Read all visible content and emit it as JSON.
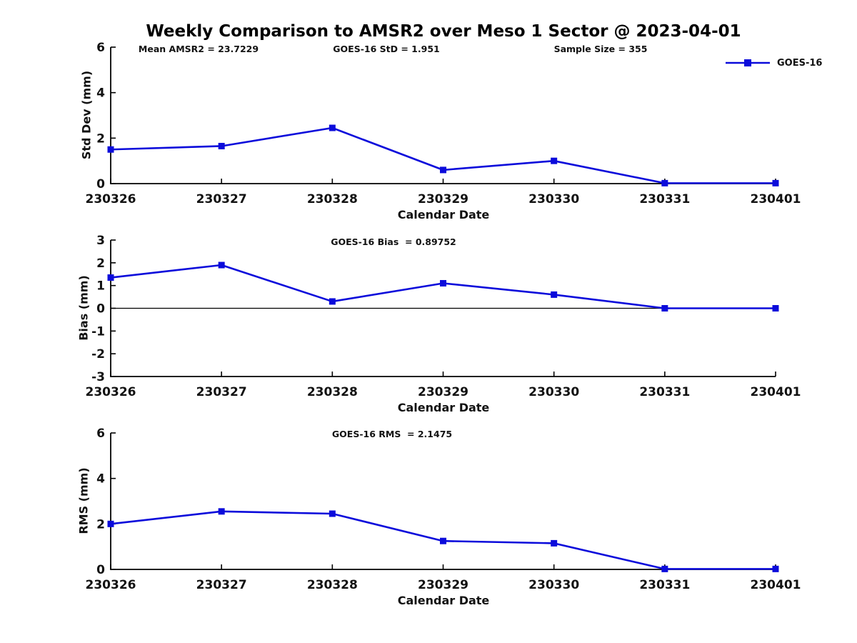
{
  "figure": {
    "title": "Weekly Comparison to AMSR2 over Meso 1 Sector @ 2023-04-01",
    "background_color": "#ffffff",
    "text_color": "#111111",
    "axis_color": "#000000"
  },
  "legend": {
    "label": "GOES-16",
    "color": "#0b0bdb",
    "position": "top-right",
    "marker": "square"
  },
  "chart_data": [
    {
      "type": "line",
      "name": "std-dev",
      "title": "",
      "xlabel": "Calendar Date",
      "ylabel": "Std Dev (mm)",
      "categories": [
        "230326",
        "230327",
        "230328",
        "230329",
        "230330",
        "230331",
        "230401"
      ],
      "series": [
        {
          "name": "GOES-16",
          "color": "#0b0bdb",
          "marker": "square",
          "values": [
            1.5,
            1.65,
            2.45,
            0.6,
            1.0,
            0.02,
            0.02
          ]
        }
      ],
      "ylim": [
        0,
        6
      ],
      "yticks": [
        0,
        2,
        4,
        6
      ],
      "grid": false,
      "zero_line": false,
      "annotations": [
        "Mean AMSR2 = 23.7229",
        "GOES-16 StD = 1.951",
        "Sample Size = 355"
      ]
    },
    {
      "type": "line",
      "name": "bias",
      "title": "",
      "xlabel": "Calendar Date",
      "ylabel": "Bias (mm)",
      "categories": [
        "230326",
        "230327",
        "230328",
        "230329",
        "230330",
        "230331",
        "230401"
      ],
      "series": [
        {
          "name": "GOES-16",
          "color": "#0b0bdb",
          "marker": "square",
          "values": [
            1.35,
            1.9,
            0.3,
            1.1,
            0.6,
            0.0,
            0.0
          ]
        }
      ],
      "ylim": [
        -3,
        3
      ],
      "yticks": [
        3,
        2,
        1,
        0,
        -1,
        -2,
        -3
      ],
      "grid": false,
      "zero_line": true,
      "annotations": [
        "GOES-16 Bias  = 0.89752"
      ]
    },
    {
      "type": "line",
      "name": "rms",
      "title": "",
      "xlabel": "Calendar Date",
      "ylabel": "RMS (mm)",
      "categories": [
        "230326",
        "230327",
        "230328",
        "230329",
        "230330",
        "230331",
        "230401"
      ],
      "series": [
        {
          "name": "GOES-16",
          "color": "#0b0bdb",
          "marker": "square",
          "values": [
            2.0,
            2.55,
            2.45,
            1.25,
            1.15,
            0.02,
            0.02
          ]
        }
      ],
      "ylim": [
        0,
        6
      ],
      "yticks": [
        0,
        2,
        4,
        6
      ],
      "grid": false,
      "zero_line": false,
      "annotations": [
        "GOES-16 RMS  = 2.1475"
      ]
    }
  ]
}
